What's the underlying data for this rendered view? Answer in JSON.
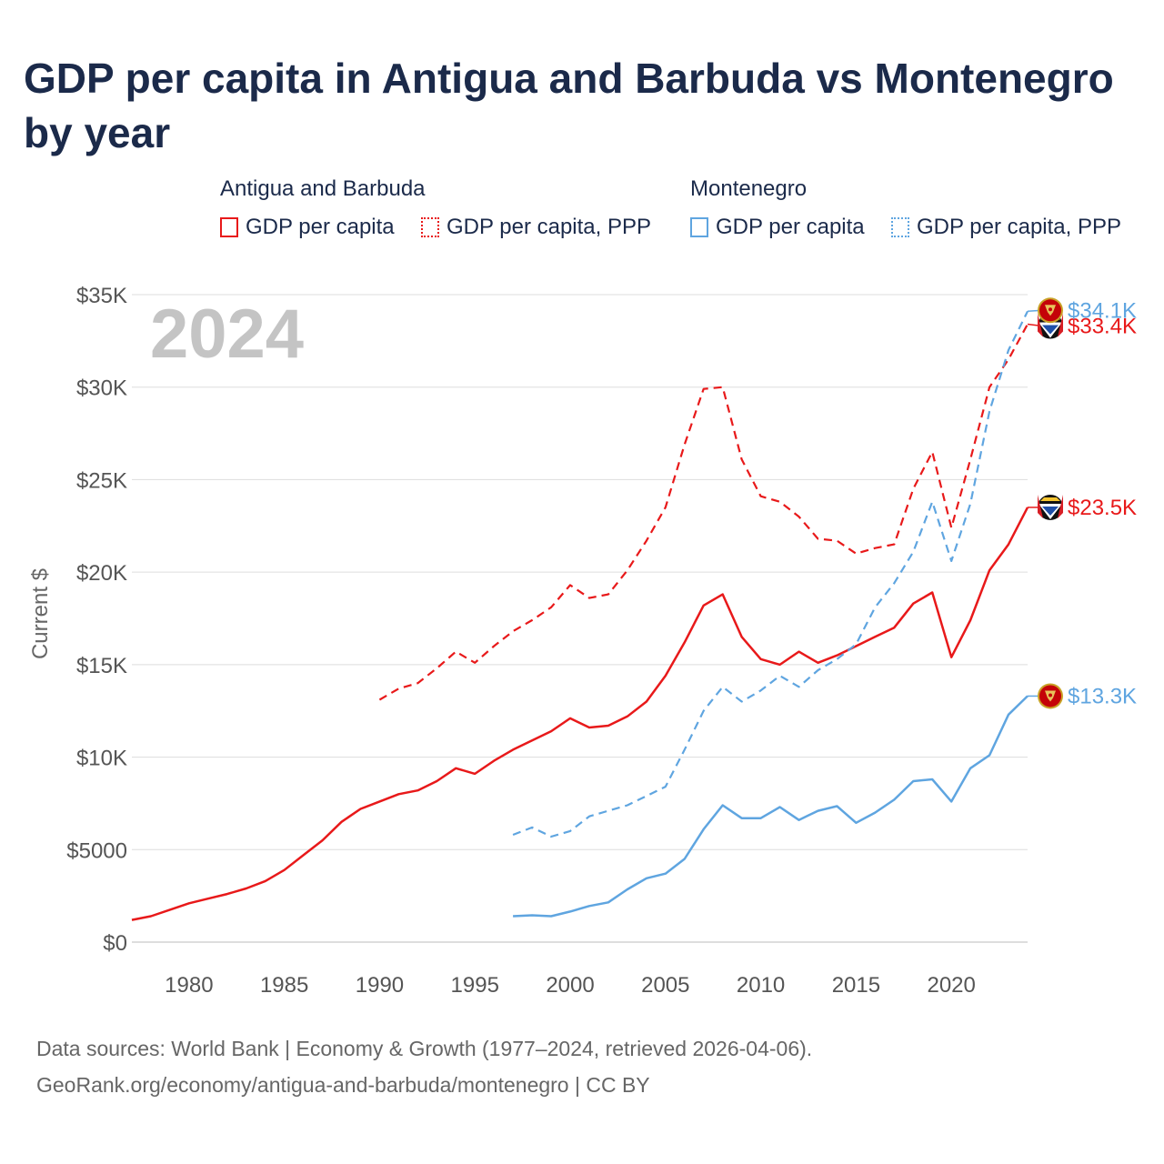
{
  "title": "GDP per capita in Antigua and Barbuda vs Montenegro by year",
  "legend": {
    "groups": [
      {
        "name": "Antigua and Barbuda",
        "items": [
          "GDP per capita",
          "GDP per capita, PPP"
        ]
      },
      {
        "name": "Montenegro",
        "items": [
          "GDP per capita",
          "GDP per capita, PPP"
        ]
      }
    ]
  },
  "footer": {
    "line1": "Data sources: World Bank | Economy & Growth (1977–2024, retrieved 2026-04-06).",
    "line2": "GeoRank.org/economy/antigua-and-barbuda/montenegro | CC BY"
  },
  "colors": {
    "antigua": "#e8191a",
    "montenegro": "#5fa5e0",
    "text": "#1b2a4a",
    "axis": "#555555",
    "grid": "#dddddd",
    "year": "#c4c4c4"
  },
  "chart_data": {
    "type": "line",
    "title": "GDP per capita in Antigua and Barbuda vs Montenegro by year",
    "year_label": "2024",
    "xlabel": "",
    "ylabel": "Current $",
    "xlim": [
      1977,
      2024
    ],
    "ylim": [
      0,
      35000
    ],
    "x_ticks": [
      1980,
      1985,
      1990,
      1995,
      2000,
      2005,
      2010,
      2015,
      2020
    ],
    "y_ticks": [
      0,
      5000,
      10000,
      15000,
      20000,
      25000,
      30000,
      35000
    ],
    "y_tick_labels": [
      "$0",
      "$5000",
      "$10K",
      "$15K",
      "$20K",
      "$25K",
      "$30K",
      "$35K"
    ],
    "grid": true,
    "series": [
      {
        "name": "Antigua and Barbuda GDP per capita",
        "country": "antigua",
        "style": "solid",
        "x": [
          1977,
          1978,
          1979,
          1980,
          1981,
          1982,
          1983,
          1984,
          1985,
          1986,
          1987,
          1988,
          1989,
          1990,
          1991,
          1992,
          1993,
          1994,
          1995,
          1996,
          1997,
          1998,
          1999,
          2000,
          2001,
          2002,
          2003,
          2004,
          2005,
          2006,
          2007,
          2008,
          2009,
          2010,
          2011,
          2012,
          2013,
          2014,
          2015,
          2016,
          2017,
          2018,
          2019,
          2020,
          2021,
          2022,
          2023,
          2024
        ],
        "y": [
          1200,
          1400,
          1750,
          2100,
          2350,
          2600,
          2900,
          3300,
          3900,
          4700,
          5500,
          6500,
          7200,
          7600,
          8000,
          8200,
          8700,
          9400,
          9100,
          9800,
          10400,
          10900,
          11400,
          12100,
          11600,
          11700,
          12200,
          13000,
          14400,
          16200,
          18200,
          18800,
          16500,
          15300,
          15000,
          15700,
          15100,
          15500,
          16000,
          16500,
          17000,
          18300,
          18900,
          15400,
          17400,
          20100,
          21500,
          23500
        ],
        "end_label": "$23.5K"
      },
      {
        "name": "Antigua and Barbuda GDP per capita, PPP",
        "country": "antigua",
        "style": "dashed",
        "x": [
          1990,
          1991,
          1992,
          1993,
          1994,
          1995,
          1996,
          1997,
          1998,
          1999,
          2000,
          2001,
          2002,
          2003,
          2004,
          2005,
          2006,
          2007,
          2008,
          2009,
          2010,
          2011,
          2012,
          2013,
          2014,
          2015,
          2016,
          2017,
          2018,
          2019,
          2020,
          2021,
          2022,
          2023,
          2024
        ],
        "y": [
          13100,
          13700,
          14000,
          14800,
          15700,
          15100,
          16000,
          16800,
          17400,
          18100,
          19300,
          18600,
          18800,
          20100,
          21700,
          23500,
          26900,
          29900,
          30000,
          26100,
          24100,
          23800,
          23000,
          21800,
          21700,
          21000,
          21300,
          21500,
          24500,
          26500,
          22400,
          26100,
          30000,
          31500,
          33400
        ],
        "end_label": "$33.4K"
      },
      {
        "name": "Montenegro GDP per capita",
        "country": "montenegro",
        "style": "solid",
        "x": [
          1997,
          1998,
          1999,
          2000,
          2001,
          2002,
          2003,
          2004,
          2005,
          2006,
          2007,
          2008,
          2009,
          2010,
          2011,
          2012,
          2013,
          2014,
          2015,
          2016,
          2017,
          2018,
          2019,
          2020,
          2021,
          2022,
          2023,
          2024
        ],
        "y": [
          1400,
          1450,
          1400,
          1650,
          1950,
          2150,
          2850,
          3450,
          3700,
          4500,
          6100,
          7400,
          6700,
          6700,
          7300,
          6600,
          7100,
          7350,
          6450,
          7000,
          7700,
          8700,
          8800,
          7600,
          9400,
          10100,
          12300,
          13300
        ],
        "end_label": "$13.3K"
      },
      {
        "name": "Montenegro GDP per capita, PPP",
        "country": "montenegro",
        "style": "dashed",
        "x": [
          1997,
          1998,
          1999,
          2000,
          2001,
          2002,
          2003,
          2004,
          2005,
          2006,
          2007,
          2008,
          2009,
          2010,
          2011,
          2012,
          2013,
          2014,
          2015,
          2016,
          2017,
          2018,
          2019,
          2020,
          2021,
          2022,
          2023,
          2024
        ],
        "y": [
          5800,
          6200,
          5700,
          6000,
          6800,
          7100,
          7400,
          7900,
          8400,
          10400,
          12500,
          13800,
          13000,
          13600,
          14400,
          13800,
          14700,
          15300,
          16100,
          18100,
          19400,
          21100,
          23800,
          20600,
          23700,
          28700,
          32000,
          34100
        ],
        "end_label": "$34.1K"
      }
    ]
  }
}
